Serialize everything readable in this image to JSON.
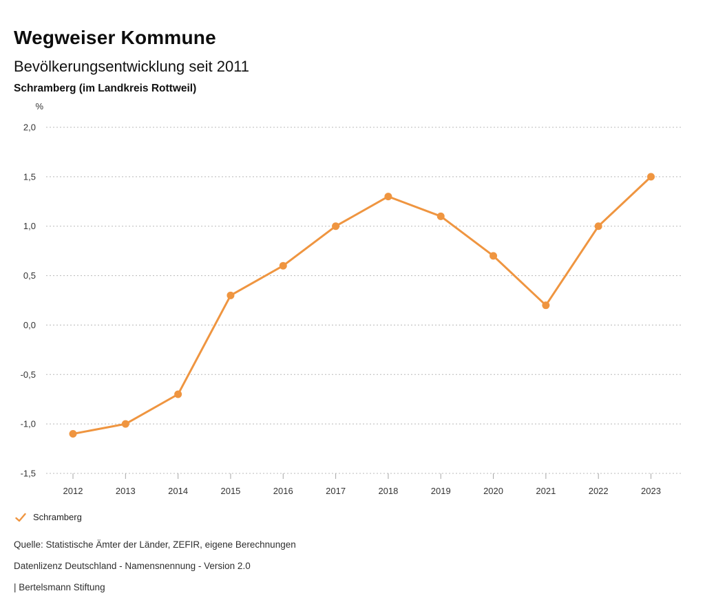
{
  "header": {
    "title": "Wegweiser Kommune",
    "subtitle": "Bevölkerungsentwicklung seit 2011",
    "location": "Schramberg (im Landkreis Rottweil)"
  },
  "chart_data": {
    "type": "line",
    "title": "Bevölkerungsentwicklung seit 2011",
    "subtitle": "Schramberg (im Landkreis Rottweil)",
    "unit_label": "%",
    "xlabel": "",
    "ylabel": "%",
    "x": [
      2012,
      2013,
      2014,
      2015,
      2016,
      2017,
      2018,
      2019,
      2020,
      2021,
      2022,
      2023
    ],
    "series": [
      {
        "name": "Schramberg",
        "values": [
          -1.1,
          -1.0,
          -0.7,
          0.3,
          0.6,
          1.0,
          1.3,
          1.1,
          0.7,
          0.2,
          1.0,
          1.5
        ],
        "color": "#EF9540"
      }
    ],
    "ylim": [
      -1.5,
      2.0
    ],
    "yticks": [
      {
        "v": 2.0,
        "label": "2,0"
      },
      {
        "v": 1.5,
        "label": "1,5"
      },
      {
        "v": 1.0,
        "label": "1,0"
      },
      {
        "v": 0.5,
        "label": "0,5"
      },
      {
        "v": 0.0,
        "label": "0,0"
      },
      {
        "v": -0.5,
        "label": "-0,5"
      },
      {
        "v": -1.0,
        "label": "-1,0"
      },
      {
        "v": -1.5,
        "label": "-1,5"
      }
    ],
    "grid": "horizontal-dotted",
    "legend_position": "bottom-left",
    "gridline_color": "#b8b8b8"
  },
  "legend": {
    "items": [
      {
        "label": "Schramberg",
        "color": "#EF9540",
        "marker": "check"
      }
    ]
  },
  "footer": {
    "source": "Quelle: Statistische Ämter der Länder, ZEFIR, eigene Berechnungen",
    "license": "Datenlizenz Deutschland - Namensnennung - Version 2.0",
    "attribution": "| Bertelsmann Stiftung"
  }
}
